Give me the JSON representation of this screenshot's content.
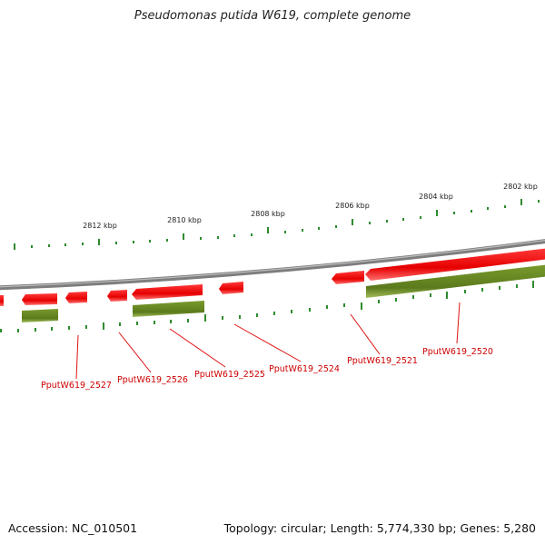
{
  "title": "Pseudomonas putida W619, complete genome",
  "footer": {
    "accession": "Accession: NC_010501",
    "summary": "Topology: circular; Length: 5,774,330 bp; Genes: 5,280"
  },
  "scale_labels": [
    "2812 kbp",
    "2810 kbp",
    "2808 kbp",
    "2806 kbp",
    "2804 kbp",
    "2802 kbp"
  ],
  "gene_labels": [
    "PputW619_2527",
    "PputW619_2526",
    "PputW619_2525",
    "PputW619_2524",
    "PputW619_2521",
    "PputW619_2520"
  ],
  "colors": {
    "backbone": "#888888",
    "gene": "#ee1111",
    "cds": "#6b8e23",
    "tick": "#2e8b2e",
    "label": "#cc0000"
  }
}
